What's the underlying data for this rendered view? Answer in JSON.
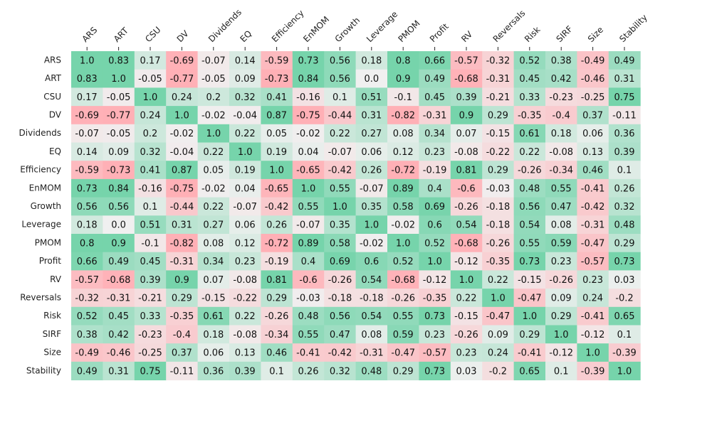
{
  "chart_data": {
    "type": "heatmap",
    "title": "",
    "xlabel": "",
    "ylabel": "",
    "labels": [
      "ARS",
      "ART",
      "CSU",
      "DV",
      "Dividends",
      "EQ",
      "Efficiency",
      "EnMOM",
      "Growth",
      "Leverage",
      "PMOM",
      "Profit",
      "RV",
      "Reversals",
      "Risk",
      "SIRF",
      "Size",
      "Stability"
    ],
    "matrix": [
      [
        1.0,
        0.83,
        0.17,
        -0.69,
        -0.07,
        0.14,
        -0.59,
        0.73,
        0.56,
        0.18,
        0.8,
        0.66,
        -0.57,
        -0.32,
        0.52,
        0.38,
        -0.49,
        0.49
      ],
      [
        0.83,
        1.0,
        -0.05,
        -0.77,
        -0.05,
        0.09,
        -0.73,
        0.84,
        0.56,
        0.0,
        0.9,
        0.49,
        -0.68,
        -0.31,
        0.45,
        0.42,
        -0.46,
        0.31
      ],
      [
        0.17,
        -0.05,
        1.0,
        0.24,
        0.2,
        0.32,
        0.41,
        -0.16,
        0.1,
        0.51,
        -0.1,
        0.45,
        0.39,
        -0.21,
        0.33,
        -0.23,
        -0.25,
        0.75
      ],
      [
        -0.69,
        -0.77,
        0.24,
        1.0,
        -0.02,
        -0.04,
        0.87,
        -0.75,
        -0.44,
        0.31,
        -0.82,
        -0.31,
        0.9,
        0.29,
        -0.35,
        -0.4,
        0.37,
        -0.11
      ],
      [
        -0.07,
        -0.05,
        0.2,
        -0.02,
        1.0,
        0.22,
        0.05,
        -0.02,
        0.22,
        0.27,
        0.08,
        0.34,
        0.07,
        -0.15,
        0.61,
        0.18,
        0.06,
        0.36
      ],
      [
        0.14,
        0.09,
        0.32,
        -0.04,
        0.22,
        1.0,
        0.19,
        0.04,
        -0.07,
        0.06,
        0.12,
        0.23,
        -0.08,
        -0.22,
        0.22,
        -0.08,
        0.13,
        0.39
      ],
      [
        -0.59,
        -0.73,
        0.41,
        0.87,
        0.05,
        0.19,
        1.0,
        -0.65,
        -0.42,
        0.26,
        -0.72,
        -0.19,
        0.81,
        0.29,
        -0.26,
        -0.34,
        0.46,
        0.1
      ],
      [
        0.73,
        0.84,
        -0.16,
        -0.75,
        -0.02,
        0.04,
        -0.65,
        1.0,
        0.55,
        -0.07,
        0.89,
        0.4,
        -0.6,
        -0.03,
        0.48,
        0.55,
        -0.41,
        0.26
      ],
      [
        0.56,
        0.56,
        0.1,
        -0.44,
        0.22,
        -0.07,
        -0.42,
        0.55,
        1.0,
        0.35,
        0.58,
        0.69,
        -0.26,
        -0.18,
        0.56,
        0.47,
        -0.42,
        0.32
      ],
      [
        0.18,
        0.0,
        0.51,
        0.31,
        0.27,
        0.06,
        0.26,
        -0.07,
        0.35,
        1.0,
        -0.02,
        0.6,
        0.54,
        -0.18,
        0.54,
        0.08,
        -0.31,
        0.48
      ],
      [
        0.8,
        0.9,
        -0.1,
        -0.82,
        0.08,
        0.12,
        -0.72,
        0.89,
        0.58,
        -0.02,
        1.0,
        0.52,
        -0.68,
        -0.26,
        0.55,
        0.59,
        -0.47,
        0.29
      ],
      [
        0.66,
        0.49,
        0.45,
        -0.31,
        0.34,
        0.23,
        -0.19,
        0.4,
        0.69,
        0.6,
        0.52,
        1.0,
        -0.12,
        -0.35,
        0.73,
        0.23,
        -0.57,
        0.73
      ],
      [
        -0.57,
        -0.68,
        0.39,
        0.9,
        0.07,
        -0.08,
        0.81,
        -0.6,
        -0.26,
        0.54,
        -0.68,
        -0.12,
        1.0,
        0.22,
        -0.15,
        -0.26,
        0.23,
        0.03
      ],
      [
        -0.32,
        -0.31,
        -0.21,
        0.29,
        -0.15,
        -0.22,
        0.29,
        -0.03,
        -0.18,
        -0.18,
        -0.26,
        -0.35,
        0.22,
        1.0,
        -0.47,
        0.09,
        0.24,
        -0.2
      ],
      [
        0.52,
        0.45,
        0.33,
        -0.35,
        0.61,
        0.22,
        -0.26,
        0.48,
        0.56,
        0.54,
        0.55,
        0.73,
        -0.15,
        -0.47,
        1.0,
        0.29,
        -0.41,
        0.65
      ],
      [
        0.38,
        0.42,
        -0.23,
        -0.4,
        0.18,
        -0.08,
        -0.34,
        0.55,
        0.47,
        0.08,
        0.59,
        0.23,
        -0.26,
        0.09,
        0.29,
        1.0,
        -0.12,
        0.1
      ],
      [
        -0.49,
        -0.46,
        -0.25,
        0.37,
        0.06,
        0.13,
        0.46,
        -0.41,
        -0.42,
        -0.31,
        -0.47,
        -0.57,
        0.23,
        0.24,
        -0.41,
        -0.12,
        1.0,
        -0.39
      ],
      [
        0.49,
        0.31,
        0.75,
        -0.11,
        0.36,
        0.39,
        0.1,
        0.26,
        0.32,
        0.48,
        0.29,
        0.73,
        0.03,
        -0.2,
        0.65,
        0.1,
        -0.39,
        1.0
      ]
    ],
    "color_scale": {
      "negative": "#ffb0b6",
      "neutral": "#f0f0f0",
      "positive": "#76d4ab",
      "domain": [
        -1,
        0,
        1
      ]
    },
    "grid": false,
    "legend": "none"
  }
}
